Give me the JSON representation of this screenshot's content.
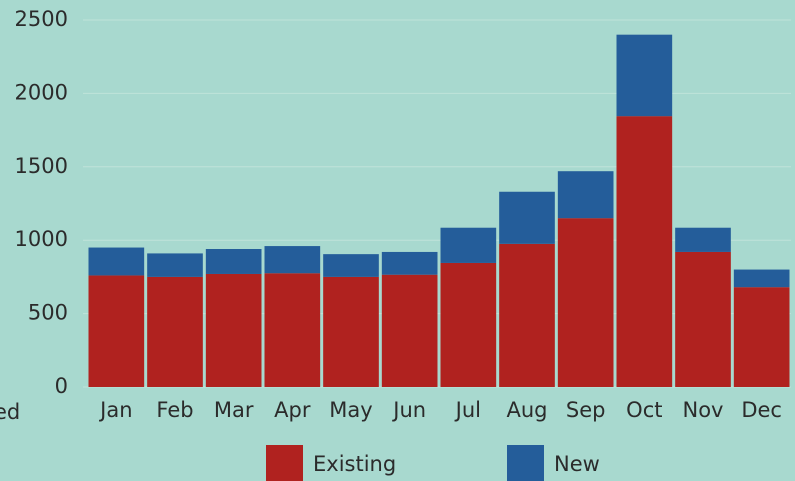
{
  "chart_data": {
    "type": "stacked_bar",
    "categories": [
      "Jan",
      "Feb",
      "Mar",
      "Apr",
      "May",
      "Jun",
      "Jul",
      "Aug",
      "Sep",
      "Oct",
      "Nov",
      "Dec"
    ],
    "series": [
      {
        "name": "Existing",
        "color": "#b0221f",
        "values": [
          760,
          750,
          770,
          775,
          750,
          765,
          845,
          975,
          1150,
          1845,
          920,
          680
        ]
      },
      {
        "name": "New",
        "color": "#245d9a",
        "values": [
          190,
          160,
          170,
          185,
          155,
          155,
          240,
          355,
          320,
          555,
          165,
          120
        ]
      }
    ],
    "ylim": [
      0,
      2500
    ],
    "yticks": [
      0,
      500,
      1000,
      1500,
      2000,
      2500
    ],
    "grid": true,
    "annotation": "ed"
  }
}
